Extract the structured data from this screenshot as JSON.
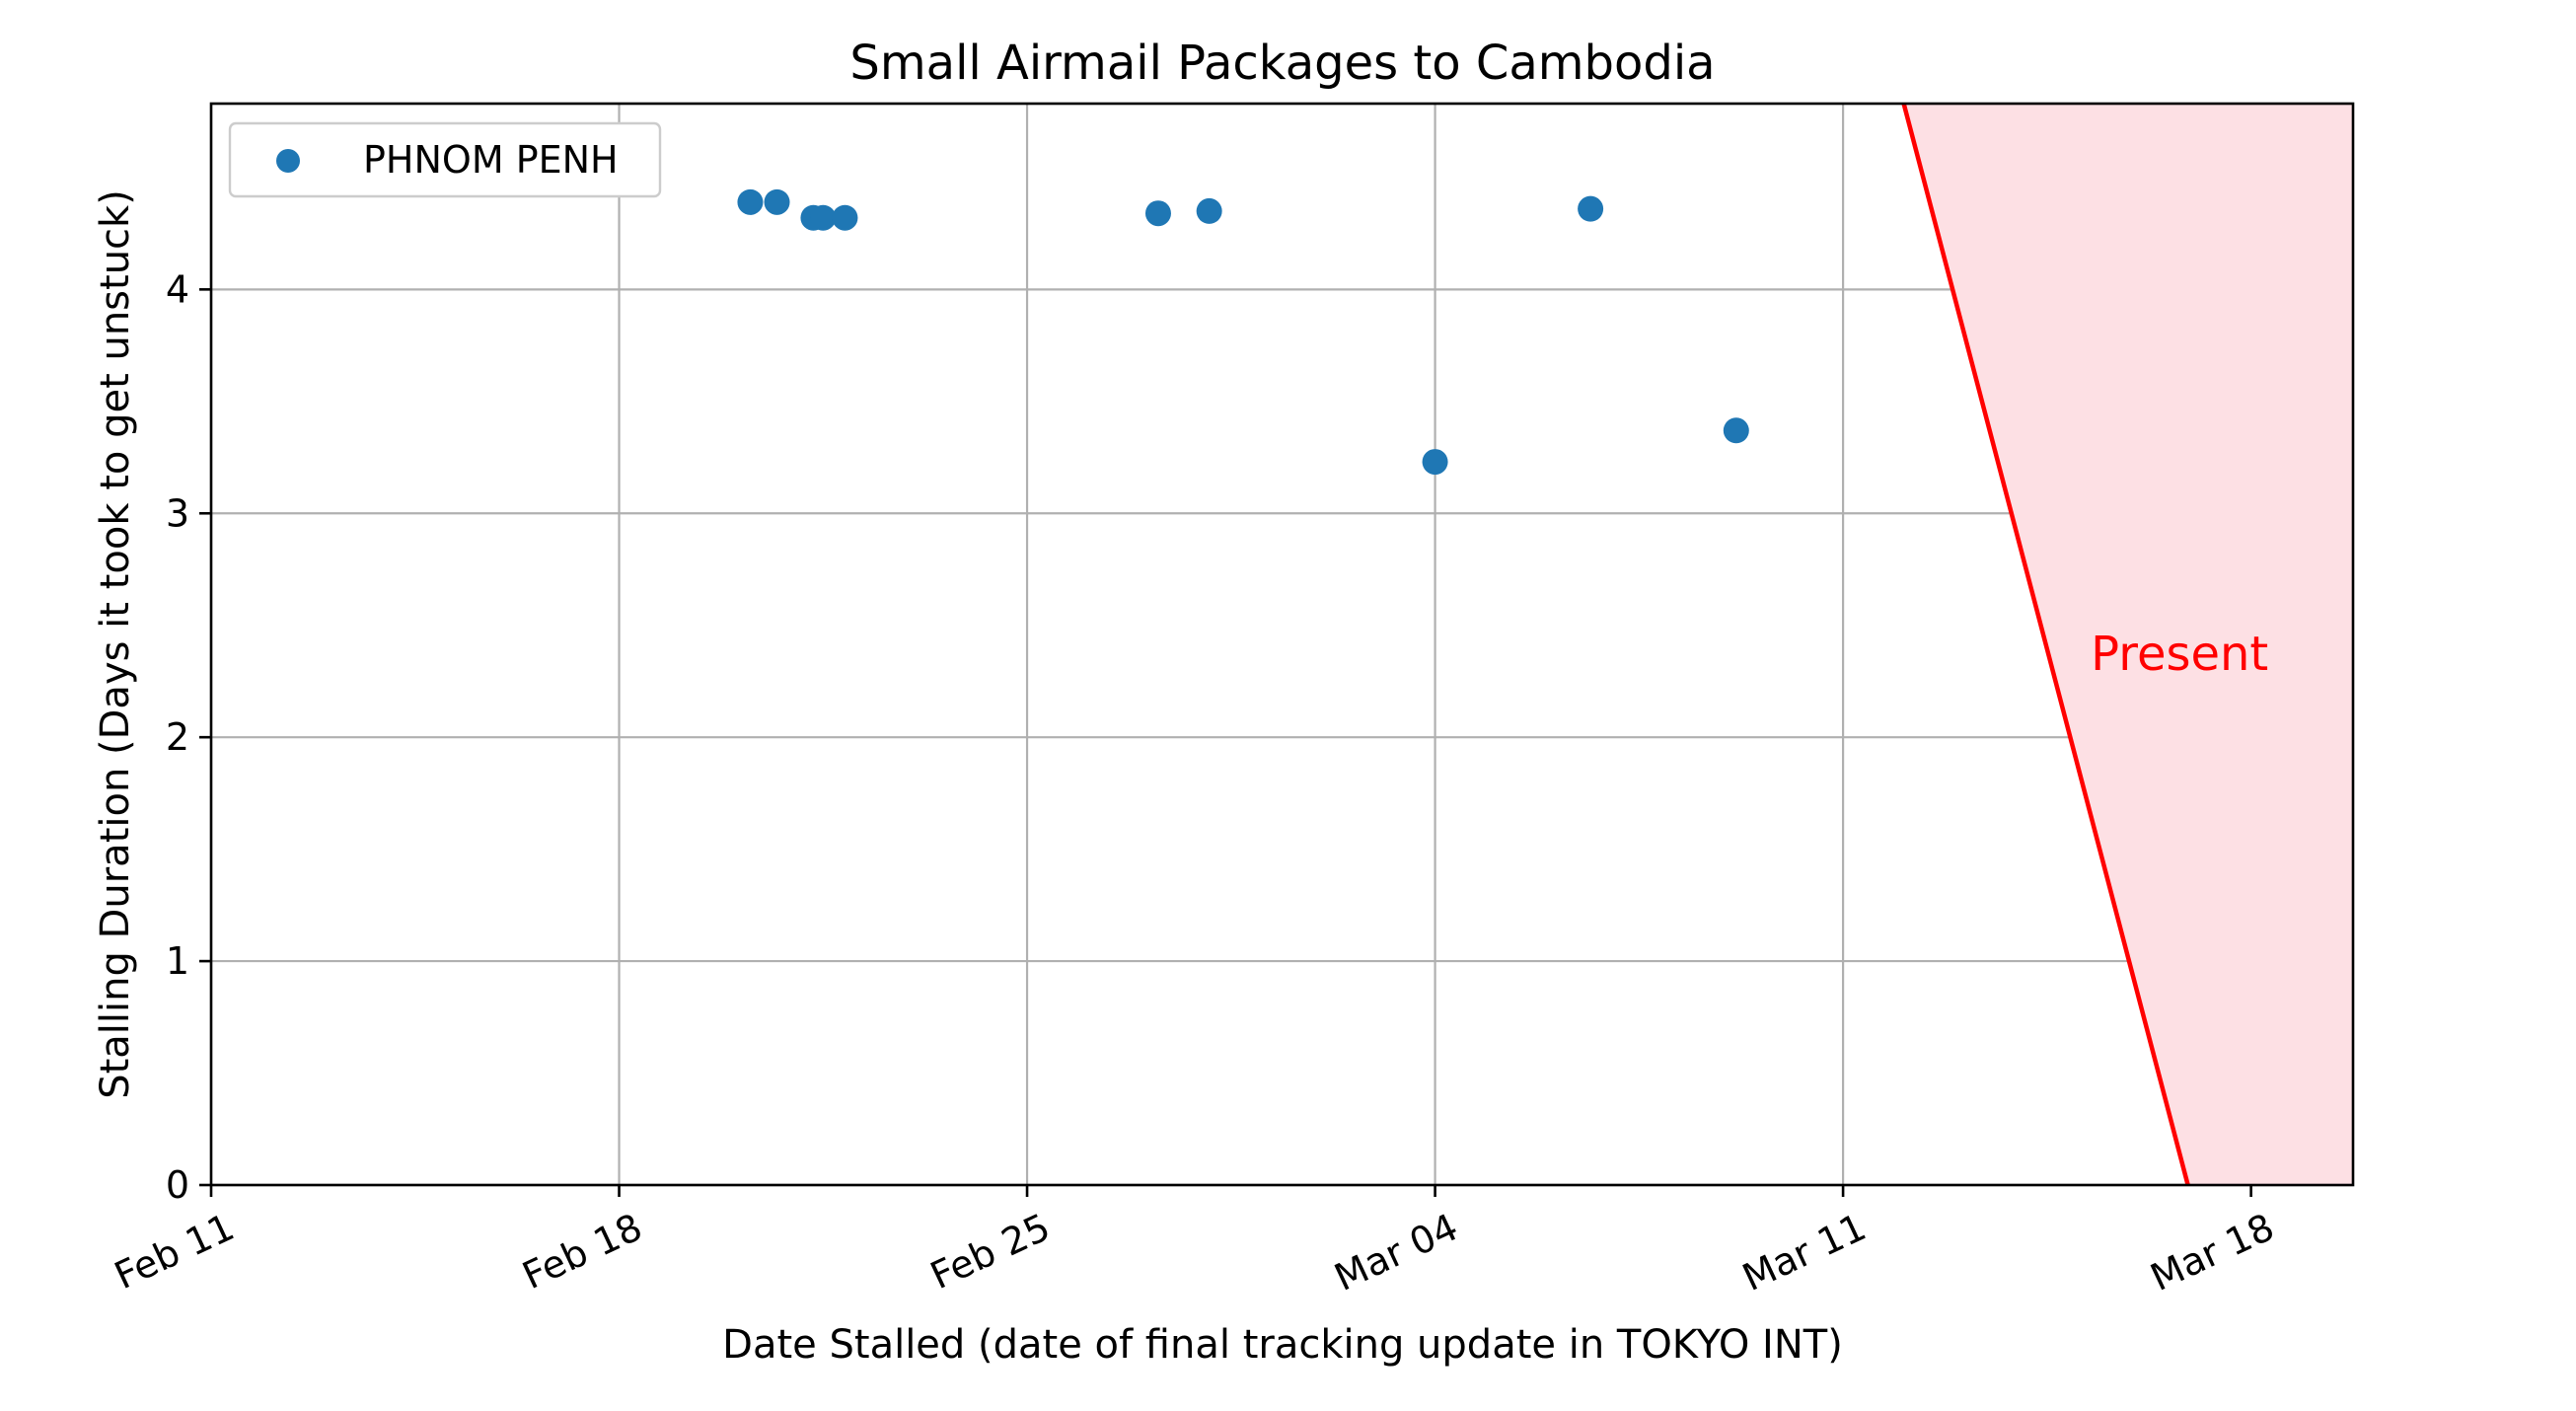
{
  "chart_data": {
    "type": "scatter",
    "title": "Small Airmail Packages to Cambodia",
    "xlabel": "Date Stalled (date of final tracking update in TOKYO INT)",
    "ylabel": "Stalling Duration (Days it took to get unstuck)",
    "x_axis_type": "date",
    "xlim": [
      "2025-02-11",
      "2025-03-19 18:00"
    ],
    "ylim": [
      0,
      4.83
    ],
    "x_ticks": [
      {
        "date": "2025-02-11",
        "label": "Feb 11"
      },
      {
        "date": "2025-02-18",
        "label": "Feb 18"
      },
      {
        "date": "2025-02-25",
        "label": "Feb 25"
      },
      {
        "date": "2025-03-04",
        "label": "Mar 04"
      },
      {
        "date": "2025-03-11",
        "label": "Mar 11"
      },
      {
        "date": "2025-03-18",
        "label": "Mar 18"
      }
    ],
    "y_ticks": [
      0,
      1,
      2,
      3,
      4
    ],
    "grid": true,
    "legend_position": "top-left",
    "series": [
      {
        "name": "PHNOM PENH",
        "color": "#1f77b4",
        "points": [
          {
            "x": "2025-02-20 06:00",
            "y": 4.39
          },
          {
            "x": "2025-02-20 17:00",
            "y": 4.39
          },
          {
            "x": "2025-02-21 08:00",
            "y": 4.32
          },
          {
            "x": "2025-02-21 12:00",
            "y": 4.32
          },
          {
            "x": "2025-02-21 21:00",
            "y": 4.32
          },
          {
            "x": "2025-02-27 06:00",
            "y": 4.34
          },
          {
            "x": "2025-02-28 03:00",
            "y": 4.35
          },
          {
            "x": "2025-03-04 00:00",
            "y": 3.23
          },
          {
            "x": "2025-03-06 16:00",
            "y": 4.36
          },
          {
            "x": "2025-03-09 04:00",
            "y": 3.37
          }
        ]
      }
    ],
    "annotation": {
      "text": "Present",
      "color": "#ff0000",
      "fill_color": "#fde0e4",
      "line": [
        {
          "x": "2025-03-12 01:00",
          "y": 4.83
        },
        {
          "x": "2025-03-16 22:00",
          "y": 0
        }
      ],
      "text_anchor": {
        "x": "2025-03-15 06:00",
        "y": 2.3
      }
    }
  }
}
